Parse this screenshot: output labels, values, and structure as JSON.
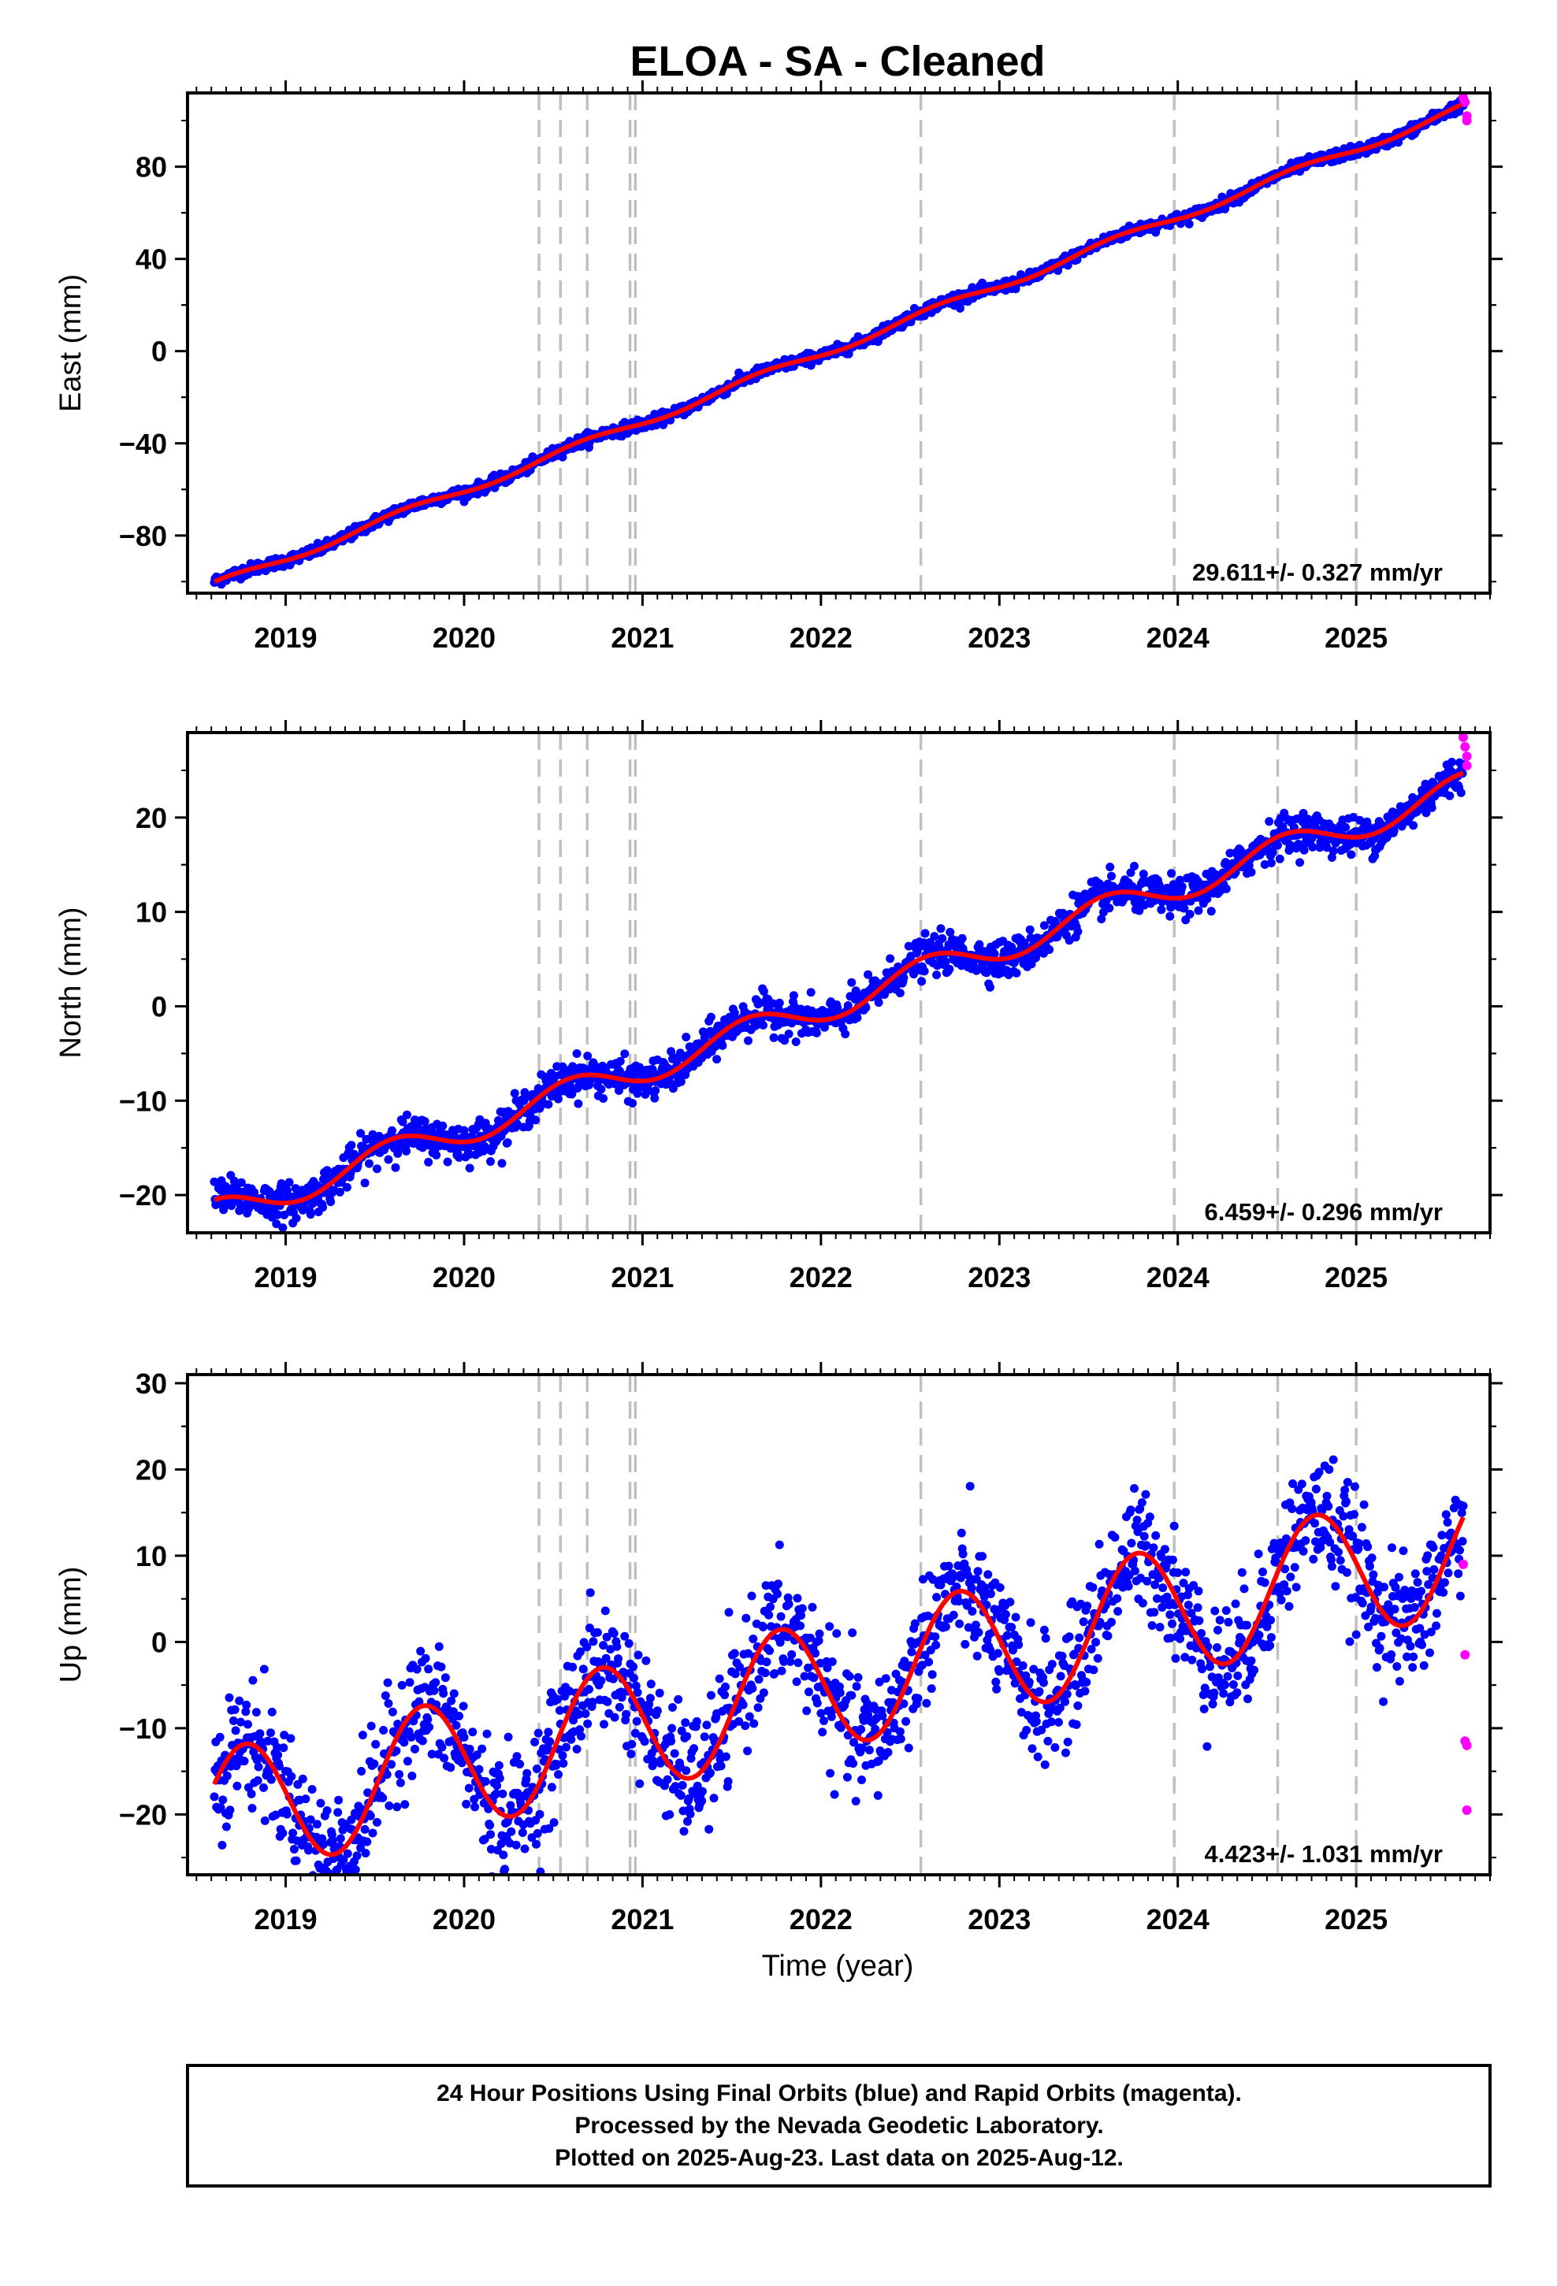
{
  "title": "ELOA  - SA - Cleaned",
  "xlabel": "Time (year)",
  "footer": [
    "24 Hour Positions Using Final Orbits (blue) and Rapid Orbits (magenta).",
    "Processed by the Nevada Geodetic Laboratory.",
    "Plotted on 2025-Aug-23. Last data on 2025-Aug-12."
  ],
  "colors": {
    "final": "#0000ff",
    "rapid": "#ff00ff",
    "model": "#ff0000",
    "event_line": "#c0c0c0"
  },
  "chart_data": [
    {
      "type": "scatter",
      "ylabel": "East (mm)",
      "rate_label": "29.611+/- 0.327 mm/yr",
      "xlim": [
        2018.45,
        2025.75
      ],
      "ylim": [
        -105,
        112
      ],
      "x_ticks": [
        2019,
        2020,
        2021,
        2022,
        2023,
        2024,
        2025
      ],
      "x_tick_labels": [
        "2019",
        "2020",
        "2021",
        "2022",
        "2023",
        "2024",
        "2025"
      ],
      "y_ticks": [
        -80,
        -40,
        0,
        40,
        80
      ],
      "y_tick_labels": [
        "−80",
        "−40",
        "0",
        "40",
        "80"
      ],
      "event_lines": [
        2020.42,
        2020.54,
        2020.69,
        2020.93,
        2020.96,
        2022.56,
        2023.98,
        2024.56,
        2025.0
      ],
      "start": [
        2018.6,
        -100
      ],
      "rate": 29.611,
      "seasonal": {
        "amplitude": 1.8,
        "phase": 1.2
      },
      "noise": 1.2,
      "sample_step": 0.004,
      "end_year": 2025.6,
      "rapid_points": [
        [
          2025.6,
          110
        ],
        [
          2025.61,
          108
        ],
        [
          2025.62,
          102
        ],
        [
          2025.62,
          100
        ]
      ]
    },
    {
      "type": "scatter",
      "ylabel": "North (mm)",
      "rate_label": "6.459+/- 0.296 mm/yr",
      "xlim": [
        2018.45,
        2025.75
      ],
      "ylim": [
        -24,
        29
      ],
      "x_ticks": [
        2019,
        2020,
        2021,
        2022,
        2023,
        2024,
        2025
      ],
      "x_tick_labels": [
        "2019",
        "2020",
        "2021",
        "2022",
        "2023",
        "2024",
        "2025"
      ],
      "y_ticks": [
        -20,
        -10,
        0,
        10,
        20
      ],
      "y_tick_labels": [
        "−20",
        "−10",
        "0",
        "10",
        "20"
      ],
      "event_lines": [
        2020.42,
        2020.54,
        2020.69,
        2020.93,
        2020.96,
        2022.56,
        2023.98,
        2024.56,
        2025.0
      ],
      "start": [
        2018.6,
        -20.5
      ],
      "rate": 6.459,
      "seasonal": {
        "amplitude": 1.6,
        "phase": 1.6
      },
      "noise": 1.0,
      "sample_step": 0.004,
      "end_year": 2025.6,
      "rapid_points": [
        [
          2025.6,
          28.5
        ],
        [
          2025.61,
          27.5
        ],
        [
          2025.62,
          26.5
        ],
        [
          2025.62,
          25.5
        ]
      ]
    },
    {
      "type": "scatter",
      "ylabel": "Up (mm)",
      "rate_label": "4.423+/- 1.031 mm/yr",
      "xlim": [
        2018.45,
        2025.75
      ],
      "ylim": [
        -27,
        31
      ],
      "x_ticks": [
        2019,
        2020,
        2021,
        2022,
        2023,
        2024,
        2025
      ],
      "x_tick_labels": [
        "2019",
        "2020",
        "2021",
        "2022",
        "2023",
        "2024",
        "2025"
      ],
      "y_ticks": [
        -20,
        -10,
        0,
        10,
        20,
        30
      ],
      "y_tick_labels": [
        "−20",
        "−10",
        "0",
        "10",
        "20",
        "30"
      ],
      "event_lines": [
        2020.42,
        2020.54,
        2020.69,
        2020.93,
        2020.96,
        2022.56,
        2023.98,
        2024.56,
        2025.0
      ],
      "start": [
        2018.6,
        -16.5
      ],
      "rate": 4.423,
      "seasonal": {
        "amplitude": 7.5,
        "phase": 0.5
      },
      "noise": 3.5,
      "sample_step": 0.004,
      "end_year": 2025.6,
      "rapid_points": [
        [
          2025.6,
          9
        ],
        [
          2025.61,
          -1.5
        ],
        [
          2025.61,
          -11.5
        ],
        [
          2025.62,
          -12
        ],
        [
          2025.62,
          -19.5
        ]
      ]
    }
  ]
}
